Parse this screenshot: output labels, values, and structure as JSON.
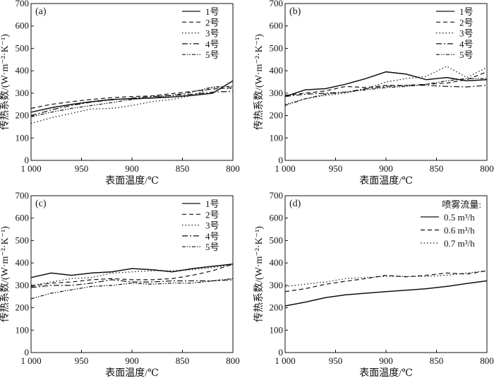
{
  "chart_data": [
    {
      "type": "line",
      "panel_label": "(a)",
      "xlabel": "表面温度/℃",
      "ylabel": "传热系数/(W·m⁻²·K⁻¹)",
      "xlim": [
        1000,
        800
      ],
      "ylim": [
        0,
        700
      ],
      "xticks": [
        "1 000",
        "950",
        "900",
        "850",
        "800"
      ],
      "yticks": [
        "0",
        "100",
        "200",
        "300",
        "400",
        "500",
        "600",
        "700"
      ],
      "legend_title": "",
      "legend_position": "top-right",
      "x": [
        1000,
        980,
        960,
        940,
        920,
        900,
        880,
        860,
        840,
        820,
        800
      ],
      "series": [
        {
          "name": "1号",
          "values": [
            215,
            235,
            250,
            262,
            272,
            275,
            278,
            283,
            290,
            300,
            355
          ]
        },
        {
          "name": "2号",
          "values": [
            232,
            250,
            262,
            272,
            280,
            285,
            288,
            298,
            308,
            318,
            325
          ]
        },
        {
          "name": "3号",
          "values": [
            165,
            190,
            210,
            230,
            232,
            245,
            262,
            272,
            290,
            325,
            320
          ]
        },
        {
          "name": "4号",
          "values": [
            200,
            225,
            245,
            260,
            270,
            278,
            285,
            290,
            295,
            305,
            308
          ]
        },
        {
          "name": "5号",
          "values": [
            195,
            215,
            232,
            245,
            258,
            272,
            280,
            290,
            305,
            328,
            330
          ]
        }
      ]
    },
    {
      "type": "line",
      "panel_label": "(b)",
      "xlabel": "表面温度/℃",
      "ylabel": "传热系数/(W·m⁻²·K⁻¹)",
      "xlim": [
        1000,
        800
      ],
      "ylim": [
        0,
        700
      ],
      "xticks": [
        "1 000",
        "950",
        "900",
        "850",
        "800"
      ],
      "yticks": [
        "0",
        "100",
        "200",
        "300",
        "400",
        "500",
        "600",
        "700"
      ],
      "legend_title": "",
      "legend_position": "top-right",
      "x": [
        1000,
        980,
        960,
        940,
        920,
        900,
        880,
        860,
        840,
        820,
        800
      ],
      "series": [
        {
          "name": "1号",
          "values": [
            285,
            315,
            320,
            340,
            365,
            395,
            385,
            360,
            370,
            355,
            360
          ]
        },
        {
          "name": "2号",
          "values": [
            290,
            300,
            310,
            330,
            325,
            335,
            335,
            340,
            345,
            360,
            395
          ]
        },
        {
          "name": "3号",
          "values": [
            250,
            275,
            290,
            300,
            320,
            350,
            365,
            375,
            420,
            370,
            415
          ]
        },
        {
          "name": "4号",
          "values": [
            285,
            295,
            300,
            305,
            320,
            330,
            335,
            335,
            330,
            328,
            335
          ]
        },
        {
          "name": "5号",
          "values": [
            245,
            275,
            295,
            305,
            315,
            325,
            330,
            340,
            355,
            365,
            365
          ]
        }
      ]
    },
    {
      "type": "line",
      "panel_label": "(c)",
      "xlabel": "表面温度/℃",
      "ylabel": "传热系数/(W·m⁻²·K⁻¹)",
      "xlim": [
        1000,
        800
      ],
      "ylim": [
        0,
        700
      ],
      "xticks": [
        "1 000",
        "950",
        "900",
        "850",
        "800"
      ],
      "yticks": [
        "0",
        "100",
        "200",
        "300",
        "400",
        "500",
        "600",
        "700"
      ],
      "legend_title": "",
      "legend_position": "top-right",
      "x": [
        1000,
        980,
        960,
        940,
        920,
        900,
        880,
        860,
        840,
        820,
        800
      ],
      "series": [
        {
          "name": "1号",
          "values": [
            335,
            355,
            345,
            355,
            360,
            375,
            370,
            360,
            375,
            385,
            395
          ]
        },
        {
          "name": "2号",
          "values": [
            295,
            310,
            315,
            325,
            330,
            325,
            325,
            330,
            345,
            365,
            395
          ]
        },
        {
          "name": "3号",
          "values": [
            300,
            315,
            330,
            335,
            355,
            360,
            365,
            365,
            370,
            380,
            390
          ]
        },
        {
          "name": "4号",
          "values": [
            290,
            300,
            300,
            310,
            325,
            315,
            315,
            320,
            320,
            320,
            325
          ]
        },
        {
          "name": "5号",
          "values": [
            240,
            265,
            280,
            295,
            300,
            310,
            305,
            310,
            310,
            320,
            330
          ]
        }
      ]
    },
    {
      "type": "line",
      "panel_label": "(d)",
      "xlabel": "表面温度/℃",
      "ylabel": "传热系数/(W·m⁻²·K⁻¹)",
      "xlim": [
        1000,
        800
      ],
      "ylim": [
        0,
        700
      ],
      "xticks": [
        "1 000",
        "950",
        "900",
        "850",
        "800"
      ],
      "yticks": [
        "0",
        "100",
        "200",
        "300",
        "400",
        "500",
        "600",
        "700"
      ],
      "legend_title": "喷雾流量:",
      "legend_position": "top-right",
      "x": [
        1000,
        980,
        960,
        940,
        920,
        900,
        880,
        860,
        840,
        820,
        800
      ],
      "series": [
        {
          "name": "0.5 m³/h",
          "values": [
            208,
            225,
            245,
            258,
            265,
            272,
            278,
            285,
            295,
            308,
            320
          ]
        },
        {
          "name": "0.6 m³/h",
          "values": [
            272,
            285,
            305,
            318,
            330,
            345,
            338,
            345,
            355,
            350,
            365
          ]
        },
        {
          "name": "0.7 m³/h",
          "values": [
            295,
            305,
            315,
            330,
            335,
            340,
            340,
            340,
            345,
            355,
            365
          ]
        }
      ]
    }
  ]
}
